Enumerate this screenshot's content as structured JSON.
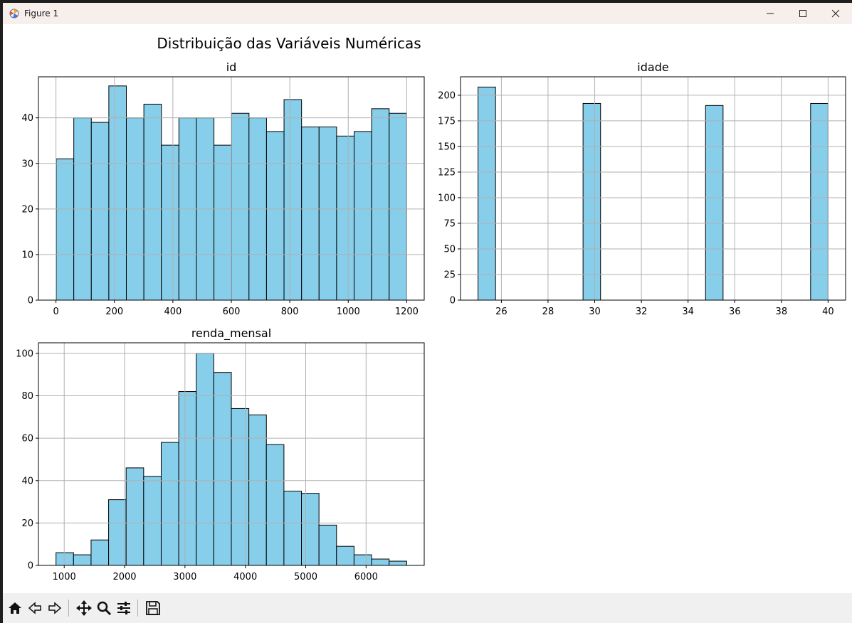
{
  "window": {
    "title": "Figure 1"
  },
  "figure": {
    "suptitle": "Distribuição das Variáveis Numéricas"
  },
  "chart_data": [
    {
      "type": "bar",
      "title": "id",
      "xlabel": "",
      "ylabel": "",
      "xlim": [
        -60,
        1260
      ],
      "ylim": [
        0,
        49
      ],
      "xticks": [
        0,
        200,
        400,
        600,
        800,
        1000,
        1200
      ],
      "yticks": [
        0,
        10,
        20,
        30,
        40
      ],
      "bins": {
        "start": 1,
        "end": 1200,
        "count": 20
      },
      "values": [
        31,
        40,
        39,
        47,
        40,
        43,
        34,
        40,
        40,
        34,
        41,
        40,
        37,
        44,
        38,
        38,
        36,
        37,
        42,
        41
      ],
      "grid": true,
      "color": "#87ceeb"
    },
    {
      "type": "bar",
      "title": "idade",
      "xlabel": "",
      "ylabel": "",
      "xlim": [
        24.25,
        40.75
      ],
      "ylim": [
        0,
        218
      ],
      "xticks": [
        26,
        28,
        30,
        32,
        34,
        36,
        38,
        40
      ],
      "yticks": [
        0,
        25,
        50,
        75,
        100,
        125,
        150,
        175,
        200
      ],
      "bins": {
        "start": 25,
        "end": 40,
        "count": 20
      },
      "values": [
        208,
        0,
        0,
        0,
        0,
        0,
        192,
        0,
        0,
        0,
        0,
        0,
        0,
        190,
        0,
        0,
        0,
        0,
        0,
        192
      ],
      "grid": true,
      "color": "#87ceeb"
    },
    {
      "type": "bar",
      "title": "renda_mensal",
      "xlabel": "",
      "ylabel": "",
      "xlim": [
        573,
        6963
      ],
      "ylim": [
        0,
        105
      ],
      "xticks": [
        1000,
        2000,
        3000,
        4000,
        5000,
        6000
      ],
      "yticks": [
        0,
        20,
        40,
        60,
        80,
        100
      ],
      "bins": {
        "start": 864,
        "end": 6672,
        "count": 20
      },
      "values": [
        6,
        5,
        12,
        31,
        46,
        42,
        58,
        82,
        100,
        91,
        74,
        71,
        57,
        35,
        34,
        19,
        9,
        5,
        3,
        2
      ],
      "grid": true,
      "color": "#87ceeb"
    }
  ],
  "toolbar": {
    "buttons": [
      {
        "name": "home-icon"
      },
      {
        "name": "back-icon"
      },
      {
        "name": "forward-icon"
      },
      {
        "name": "pan-icon"
      },
      {
        "name": "zoom-icon"
      },
      {
        "name": "configure-subplots-icon"
      },
      {
        "name": "save-icon"
      }
    ]
  }
}
